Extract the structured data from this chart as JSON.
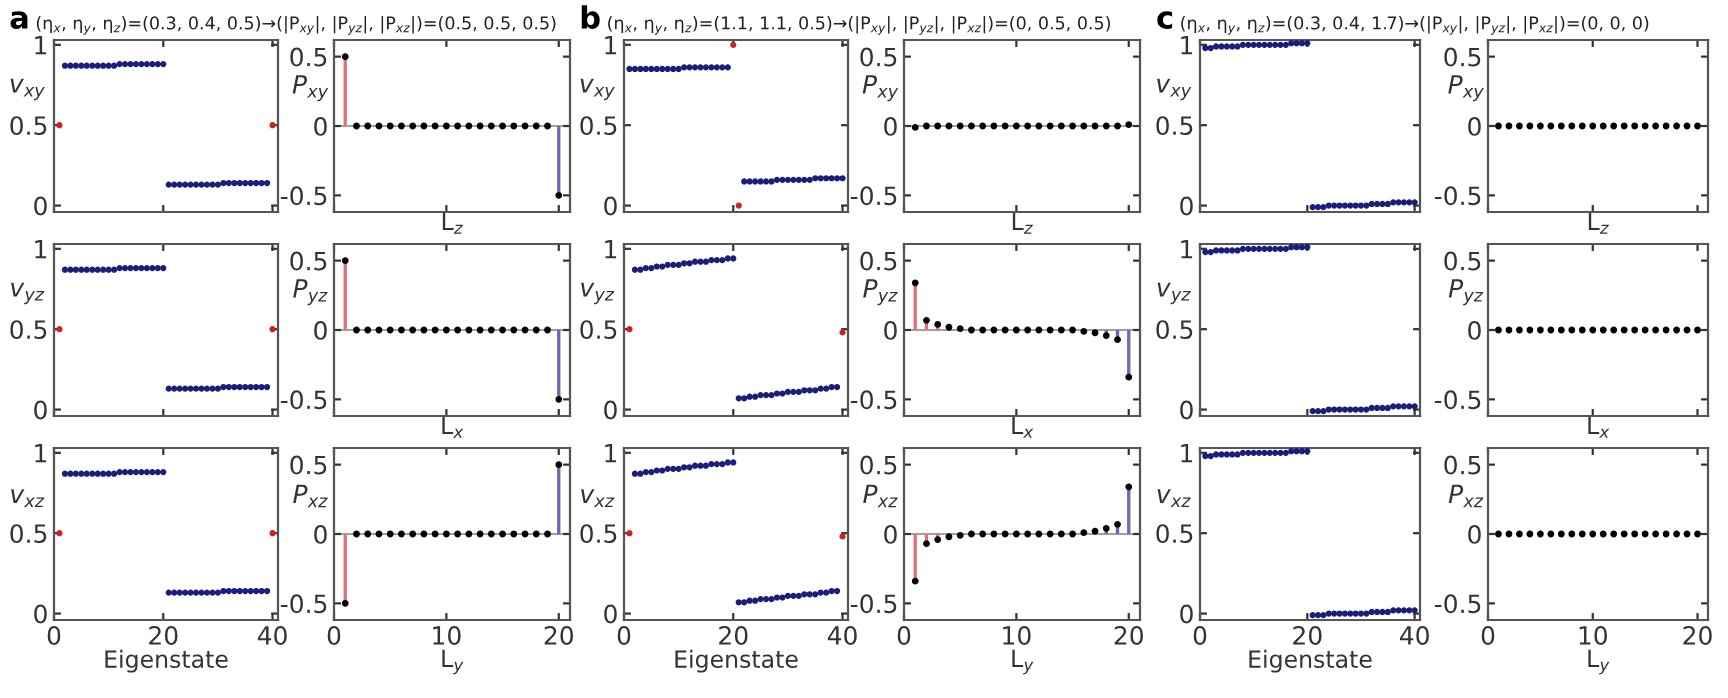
{
  "chart_data": [
    {
      "type": "scatter",
      "title": "a",
      "subtitle": "(η$_{x}$, η$_{y}$, η$_{z}$)=(0.3, 0.4, 0.5)→(|P$_{xy}$|, |P$_{yz}$|, |P$_{xz}$|)=(0.5, 0.5, 0.5)",
      "ylabel": "v$_{xy}$",
      "marker": "circle",
      "xlim": [
        0,
        41
      ],
      "xticks": [
        0,
        20,
        40
      ],
      "ylim": [
        -0.04,
        1.03
      ],
      "yticks": [
        0,
        0.5,
        1
      ],
      "tick_labels": "y",
      "series": [
        {
          "color": "#1c1c7c",
          "x": [
            2,
            3,
            4,
            5,
            6,
            7,
            8,
            9,
            10,
            11,
            12,
            13,
            14,
            15,
            16,
            17,
            18,
            19,
            20,
            21,
            22,
            23,
            24,
            25,
            26,
            27,
            28,
            29,
            30,
            31,
            32,
            33,
            34,
            35,
            36,
            37,
            38,
            39
          ],
          "values": [
            0.87,
            0.87,
            0.87,
            0.87,
            0.87,
            0.87,
            0.87,
            0.87,
            0.87,
            0.87,
            0.88,
            0.88,
            0.88,
            0.88,
            0.88,
            0.88,
            0.88,
            0.88,
            0.88,
            0.13,
            0.13,
            0.13,
            0.13,
            0.13,
            0.13,
            0.13,
            0.13,
            0.13,
            0.13,
            0.14,
            0.14,
            0.14,
            0.14,
            0.14,
            0.14,
            0.14,
            0.14,
            0.14
          ]
        },
        {
          "color": "#d02020",
          "x": [
            1,
            40
          ],
          "values": [
            0.5,
            0.5
          ]
        }
      ]
    },
    {
      "type": "lollipop",
      "ylabel": "P$_{xy}$",
      "xlabel": "L$_{z}$",
      "marker": "circle",
      "xlim": [
        0,
        21
      ],
      "xticks": [
        0,
        10,
        20
      ],
      "ylim": [
        -0.62,
        0.62
      ],
      "yticks": [
        -0.5,
        0,
        0.5
      ],
      "tick_labels": "y",
      "ref_lines": [
        {
          "axis": "y",
          "value": 0,
          "color": "#a0a0a0"
        }
      ],
      "series": [
        {
          "color": "#e0707a",
          "colors": [
            "#000000",
            "#000000",
            "#000000",
            "#000000",
            "#000000",
            "#000000",
            "#000000",
            "#000000",
            "#000000",
            "#000000"
          ],
          "x": [
            1,
            2,
            3,
            4,
            5,
            6,
            7,
            8,
            9,
            10
          ],
          "values": [
            0.5,
            0,
            0,
            0,
            0,
            0,
            0,
            0,
            0,
            0
          ]
        },
        {
          "color": "#6a6ab0",
          "colors": [
            "#000000",
            "#000000",
            "#000000",
            "#000000",
            "#000000",
            "#000000",
            "#000000",
            "#000000",
            "#000000",
            "#000000"
          ],
          "x": [
            11,
            12,
            13,
            14,
            15,
            16,
            17,
            18,
            19,
            20
          ],
          "values": [
            0,
            0,
            0,
            0,
            0,
            0,
            0,
            0,
            0,
            -0.5
          ]
        }
      ]
    },
    {
      "type": "scatter",
      "ylabel": "v$_{yz}$",
      "marker": "circle",
      "xlim": [
        0,
        41
      ],
      "xticks": [
        0,
        20,
        40
      ],
      "ylim": [
        -0.04,
        1.03
      ],
      "yticks": [
        0,
        0.5,
        1
      ],
      "tick_labels": "y",
      "series": [
        {
          "color": "#1c1c7c",
          "x": [
            2,
            3,
            4,
            5,
            6,
            7,
            8,
            9,
            10,
            11,
            12,
            13,
            14,
            15,
            16,
            17,
            18,
            19,
            20,
            21,
            22,
            23,
            24,
            25,
            26,
            27,
            28,
            29,
            30,
            31,
            32,
            33,
            34,
            35,
            36,
            37,
            38,
            39
          ],
          "values": [
            0.87,
            0.87,
            0.87,
            0.87,
            0.87,
            0.87,
            0.87,
            0.87,
            0.87,
            0.87,
            0.88,
            0.88,
            0.88,
            0.88,
            0.88,
            0.88,
            0.88,
            0.88,
            0.88,
            0.13,
            0.13,
            0.13,
            0.13,
            0.13,
            0.13,
            0.13,
            0.13,
            0.13,
            0.13,
            0.14,
            0.14,
            0.14,
            0.14,
            0.14,
            0.14,
            0.14,
            0.14,
            0.14
          ]
        },
        {
          "color": "#d02020",
          "x": [
            1,
            40
          ],
          "values": [
            0.5,
            0.5
          ]
        }
      ]
    },
    {
      "type": "lollipop",
      "ylabel": "P$_{yz}$",
      "xlabel": "L$_{x}$",
      "marker": "circle",
      "xlim": [
        0,
        21
      ],
      "xticks": [
        0,
        10,
        20
      ],
      "ylim": [
        -0.62,
        0.62
      ],
      "yticks": [
        -0.5,
        0,
        0.5
      ],
      "tick_labels": "y",
      "ref_lines": [
        {
          "axis": "y",
          "value": 0,
          "color": "#a0a0a0"
        }
      ],
      "series": [
        {
          "color": "#e0707a",
          "colors": [
            "#000000",
            "#000000",
            "#000000",
            "#000000",
            "#000000",
            "#000000",
            "#000000",
            "#000000",
            "#000000",
            "#000000"
          ],
          "x": [
            1,
            2,
            3,
            4,
            5,
            6,
            7,
            8,
            9,
            10
          ],
          "values": [
            0.5,
            0,
            0,
            0,
            0,
            0,
            0,
            0,
            0,
            0
          ]
        },
        {
          "color": "#6a6ab0",
          "colors": [
            "#000000",
            "#000000",
            "#000000",
            "#000000",
            "#000000",
            "#000000",
            "#000000",
            "#000000",
            "#000000",
            "#000000"
          ],
          "x": [
            11,
            12,
            13,
            14,
            15,
            16,
            17,
            18,
            19,
            20
          ],
          "values": [
            0,
            0,
            0,
            0,
            0,
            0,
            0,
            0,
            0,
            -0.5
          ]
        }
      ]
    },
    {
      "type": "scatter",
      "ylabel": "v$_{xz}$",
      "xlabel": "Eigenstate",
      "marker": "circle",
      "xlim": [
        0,
        41
      ],
      "xticks": [
        0,
        20,
        40
      ],
      "ylim": [
        -0.04,
        1.03
      ],
      "yticks": [
        0,
        0.5,
        1
      ],
      "series": [
        {
          "color": "#1c1c7c",
          "x": [
            2,
            3,
            4,
            5,
            6,
            7,
            8,
            9,
            10,
            11,
            12,
            13,
            14,
            15,
            16,
            17,
            18,
            19,
            20,
            21,
            22,
            23,
            24,
            25,
            26,
            27,
            28,
            29,
            30,
            31,
            32,
            33,
            34,
            35,
            36,
            37,
            38,
            39
          ],
          "values": [
            0.87,
            0.87,
            0.87,
            0.87,
            0.87,
            0.87,
            0.87,
            0.87,
            0.87,
            0.87,
            0.88,
            0.88,
            0.88,
            0.88,
            0.88,
            0.88,
            0.88,
            0.88,
            0.88,
            0.13,
            0.13,
            0.13,
            0.13,
            0.13,
            0.13,
            0.13,
            0.13,
            0.13,
            0.13,
            0.14,
            0.14,
            0.14,
            0.14,
            0.14,
            0.14,
            0.14,
            0.14,
            0.14
          ]
        },
        {
          "color": "#d02020",
          "x": [
            1,
            40
          ],
          "values": [
            0.5,
            0.5
          ]
        }
      ]
    },
    {
      "type": "lollipop",
      "ylabel": "P$_{xz}$",
      "xlabel": "L$_{y}$",
      "marker": "circle",
      "xlim": [
        0,
        21
      ],
      "xticks": [
        0,
        10,
        20
      ],
      "ylim": [
        -0.62,
        0.62
      ],
      "yticks": [
        -0.5,
        0,
        0.5
      ],
      "ref_lines": [
        {
          "axis": "y",
          "value": 0,
          "color": "#a0a0a0"
        }
      ],
      "series": [
        {
          "color": "#e0707a",
          "colors": [
            "#000000",
            "#000000",
            "#000000",
            "#000000",
            "#000000",
            "#000000",
            "#000000",
            "#000000",
            "#000000",
            "#000000"
          ],
          "x": [
            1,
            2,
            3,
            4,
            5,
            6,
            7,
            8,
            9,
            10
          ],
          "values": [
            -0.5,
            0,
            0,
            0,
            0,
            0,
            0,
            0,
            0,
            0
          ]
        },
        {
          "color": "#6a6ab0",
          "colors": [
            "#000000",
            "#000000",
            "#000000",
            "#000000",
            "#000000",
            "#000000",
            "#000000",
            "#000000",
            "#000000",
            "#000000"
          ],
          "x": [
            11,
            12,
            13,
            14,
            15,
            16,
            17,
            18,
            19,
            20
          ],
          "values": [
            0,
            0,
            0,
            0,
            0,
            0,
            0,
            0,
            0,
            0.5
          ]
        }
      ]
    },
    {
      "type": "scatter",
      "title": "b",
      "subtitle": "(η$_{x}$, η$_{y}$, η$_{z}$)=(1.1, 1.1, 0.5)→(|P$_{xy}$|, |P$_{yz}$|, |P$_{xz}$|)=(0, 0.5, 0.5)",
      "ylabel": "v$_{xy}$",
      "marker": "circle",
      "xlim": [
        0,
        41
      ],
      "xticks": [
        0,
        20,
        40
      ],
      "ylim": [
        -0.04,
        1.03
      ],
      "yticks": [
        0,
        0.5,
        1
      ],
      "tick_labels": "y",
      "series": [
        {
          "color": "#1c1c7c",
          "x": [
            1,
            2,
            3,
            4,
            5,
            6,
            7,
            8,
            9,
            10,
            11,
            12,
            13,
            14,
            15,
            16,
            17,
            18,
            19,
            22,
            23,
            24,
            25,
            26,
            27,
            28,
            29,
            30,
            31,
            32,
            33,
            34,
            35,
            36,
            37,
            38,
            39,
            40
          ],
          "values": [
            0.85,
            0.85,
            0.85,
            0.85,
            0.85,
            0.85,
            0.85,
            0.85,
            0.85,
            0.85,
            0.86,
            0.86,
            0.86,
            0.86,
            0.86,
            0.86,
            0.86,
            0.86,
            0.86,
            0.15,
            0.15,
            0.15,
            0.15,
            0.15,
            0.15,
            0.16,
            0.16,
            0.16,
            0.16,
            0.16,
            0.16,
            0.16,
            0.17,
            0.17,
            0.17,
            0.17,
            0.17,
            0.17
          ]
        },
        {
          "color": "#d02020",
          "x": [
            20,
            21
          ],
          "values": [
            1.0,
            0.0
          ]
        }
      ]
    },
    {
      "type": "lollipop",
      "ylabel": "P$_{xy}$",
      "xlabel": "L$_{z}$",
      "marker": "circle",
      "xlim": [
        0,
        21
      ],
      "xticks": [
        0,
        10,
        20
      ],
      "ylim": [
        -0.62,
        0.62
      ],
      "yticks": [
        -0.5,
        0,
        0.5
      ],
      "tick_labels": "y",
      "ref_lines": [
        {
          "axis": "y",
          "value": 0,
          "color": "#a0a0a0"
        }
      ],
      "series": [
        {
          "color": "#e0707a",
          "colors": [
            "#000000",
            "#000000",
            "#000000",
            "#000000",
            "#000000",
            "#000000",
            "#000000",
            "#000000",
            "#000000",
            "#000000"
          ],
          "x": [
            1,
            2,
            3,
            4,
            5,
            6,
            7,
            8,
            9,
            10
          ],
          "values": [
            -0.01,
            0,
            0,
            0,
            0,
            0,
            0,
            0,
            0,
            0
          ]
        },
        {
          "color": "#6a6ab0",
          "colors": [
            "#000000",
            "#000000",
            "#000000",
            "#000000",
            "#000000",
            "#000000",
            "#000000",
            "#000000",
            "#000000",
            "#000000"
          ],
          "x": [
            11,
            12,
            13,
            14,
            15,
            16,
            17,
            18,
            19,
            20
          ],
          "values": [
            0,
            0,
            0,
            0,
            0,
            0,
            0,
            0,
            0,
            0.01
          ]
        }
      ]
    },
    {
      "type": "scatter",
      "ylabel": "v$_{yz}$",
      "marker": "circle",
      "xlim": [
        0,
        41
      ],
      "xticks": [
        0,
        20,
        40
      ],
      "ylim": [
        -0.04,
        1.03
      ],
      "yticks": [
        0,
        0.5,
        1
      ],
      "tick_labels": "y",
      "series": [
        {
          "color": "#1c1c7c",
          "x": [
            2,
            3,
            4,
            5,
            6,
            7,
            8,
            9,
            10,
            11,
            12,
            13,
            14,
            15,
            16,
            17,
            18,
            19,
            20,
            21,
            22,
            23,
            24,
            25,
            26,
            27,
            28,
            29,
            30,
            31,
            32,
            33,
            34,
            35,
            36,
            37,
            38,
            39
          ],
          "values": [
            0.87,
            0.87,
            0.88,
            0.88,
            0.89,
            0.89,
            0.9,
            0.9,
            0.9,
            0.91,
            0.91,
            0.92,
            0.92,
            0.92,
            0.93,
            0.93,
            0.93,
            0.94,
            0.94,
            0.07,
            0.07,
            0.08,
            0.08,
            0.09,
            0.09,
            0.09,
            0.1,
            0.1,
            0.11,
            0.11,
            0.11,
            0.12,
            0.12,
            0.12,
            0.13,
            0.13,
            0.14,
            0.14
          ]
        },
        {
          "color": "#d02020",
          "x": [
            1,
            40
          ],
          "values": [
            0.5,
            0.48
          ]
        }
      ]
    },
    {
      "type": "lollipop",
      "ylabel": "P$_{yz}$",
      "xlabel": "L$_{x}$",
      "marker": "circle",
      "xlim": [
        0,
        21
      ],
      "xticks": [
        0,
        10,
        20
      ],
      "ylim": [
        -0.62,
        0.62
      ],
      "yticks": [
        -0.5,
        0,
        0.5
      ],
      "tick_labels": "y",
      "ref_lines": [
        {
          "axis": "y",
          "value": 0,
          "color": "#a0a0a0"
        }
      ],
      "series": [
        {
          "color": "#e0707a",
          "colors": [
            "#000000",
            "#000000",
            "#000000",
            "#000000",
            "#000000",
            "#000000",
            "#000000",
            "#000000",
            "#000000",
            "#000000"
          ],
          "x": [
            1,
            2,
            3,
            4,
            5,
            6,
            7,
            8,
            9,
            10
          ],
          "values": [
            0.34,
            0.07,
            0.04,
            0.02,
            0.01,
            0,
            0,
            0,
            0,
            0
          ]
        },
        {
          "color": "#6a6ab0",
          "colors": [
            "#000000",
            "#000000",
            "#000000",
            "#000000",
            "#000000",
            "#000000",
            "#000000",
            "#000000",
            "#000000",
            "#000000"
          ],
          "x": [
            11,
            12,
            13,
            14,
            15,
            16,
            17,
            18,
            19,
            20
          ],
          "values": [
            0,
            0,
            0,
            0,
            0,
            -0.01,
            -0.02,
            -0.04,
            -0.07,
            -0.34
          ]
        }
      ]
    },
    {
      "type": "scatter",
      "ylabel": "v$_{xz}$",
      "xlabel": "Eigenstate",
      "marker": "circle",
      "xlim": [
        0,
        41
      ],
      "xticks": [
        0,
        20,
        40
      ],
      "ylim": [
        -0.04,
        1.03
      ],
      "yticks": [
        0,
        0.5,
        1
      ],
      "series": [
        {
          "color": "#1c1c7c",
          "x": [
            2,
            3,
            4,
            5,
            6,
            7,
            8,
            9,
            10,
            11,
            12,
            13,
            14,
            15,
            16,
            17,
            18,
            19,
            20,
            21,
            22,
            23,
            24,
            25,
            26,
            27,
            28,
            29,
            30,
            31,
            32,
            33,
            34,
            35,
            36,
            37,
            38,
            39
          ],
          "values": [
            0.87,
            0.87,
            0.88,
            0.88,
            0.89,
            0.89,
            0.9,
            0.9,
            0.9,
            0.91,
            0.91,
            0.92,
            0.92,
            0.92,
            0.93,
            0.93,
            0.93,
            0.94,
            0.94,
            0.07,
            0.07,
            0.08,
            0.08,
            0.09,
            0.09,
            0.09,
            0.1,
            0.1,
            0.11,
            0.11,
            0.11,
            0.12,
            0.12,
            0.12,
            0.13,
            0.13,
            0.14,
            0.14
          ]
        },
        {
          "color": "#d02020",
          "x": [
            1,
            40
          ],
          "values": [
            0.5,
            0.48
          ]
        }
      ]
    },
    {
      "type": "lollipop",
      "ylabel": "P$_{xz}$",
      "xlabel": "L$_{y}$",
      "marker": "circle",
      "xlim": [
        0,
        21
      ],
      "xticks": [
        0,
        10,
        20
      ],
      "ylim": [
        -0.62,
        0.62
      ],
      "yticks": [
        -0.5,
        0,
        0.5
      ],
      "ref_lines": [
        {
          "axis": "y",
          "value": 0,
          "color": "#a0a0a0"
        }
      ],
      "series": [
        {
          "color": "#e0707a",
          "colors": [
            "#000000",
            "#000000",
            "#000000",
            "#000000",
            "#000000",
            "#000000",
            "#000000",
            "#000000",
            "#000000",
            "#000000"
          ],
          "x": [
            1,
            2,
            3,
            4,
            5,
            6,
            7,
            8,
            9,
            10
          ],
          "values": [
            -0.34,
            -0.07,
            -0.04,
            -0.02,
            -0.01,
            0,
            0,
            0,
            0,
            0
          ]
        },
        {
          "color": "#6a6ab0",
          "colors": [
            "#000000",
            "#000000",
            "#000000",
            "#000000",
            "#000000",
            "#000000",
            "#000000",
            "#000000",
            "#000000",
            "#000000"
          ],
          "x": [
            11,
            12,
            13,
            14,
            15,
            16,
            17,
            18,
            19,
            20
          ],
          "values": [
            0,
            0,
            0,
            0,
            0,
            0.01,
            0.02,
            0.04,
            0.07,
            0.34
          ]
        }
      ]
    },
    {
      "type": "scatter",
      "title": "c",
      "subtitle": "(η$_{x}$, η$_{y}$, η$_{z}$)=(0.3, 0.4, 1.7)→(|P$_{xy}$|, |P$_{yz}$|, |P$_{xz}$|)=(0, 0, 0)",
      "ylabel": "v$_{xy}$",
      "marker": "circle",
      "xlim": [
        0,
        41
      ],
      "xticks": [
        0,
        20,
        40
      ],
      "ylim": [
        -0.04,
        1.03
      ],
      "yticks": [
        0,
        0.5,
        1
      ],
      "tick_labels": "y",
      "series": [
        {
          "color": "#1c1c7c",
          "x": [
            1,
            2,
            3,
            4,
            5,
            6,
            7,
            8,
            9,
            10,
            11,
            12,
            13,
            14,
            15,
            16,
            17,
            18,
            19,
            20,
            21,
            22,
            23,
            24,
            25,
            26,
            27,
            28,
            29,
            30,
            31,
            32,
            33,
            34,
            35,
            36,
            37,
            38,
            39,
            40
          ],
          "values": [
            0.98,
            0.98,
            0.99,
            0.99,
            0.99,
            0.99,
            0.99,
            1.0,
            1.0,
            1.0,
            1.0,
            1.0,
            1.0,
            1.0,
            1.0,
            1.0,
            1.01,
            1.01,
            1.01,
            1.01,
            -0.01,
            -0.01,
            -0.01,
            0,
            0,
            0,
            0,
            0,
            0,
            0,
            0,
            0.01,
            0.01,
            0.01,
            0.01,
            0.02,
            0.02,
            0.02,
            0.02,
            0.02
          ]
        }
      ]
    },
    {
      "type": "lollipop",
      "ylabel": "P$_{xy}$",
      "xlabel": "L$_{z}$",
      "marker": "circle",
      "xlim": [
        0,
        21
      ],
      "xticks": [
        0,
        10,
        20
      ],
      "ylim": [
        -0.62,
        0.62
      ],
      "yticks": [
        -0.5,
        0,
        0.5
      ],
      "tick_labels": "y",
      "series": [
        {
          "color": "#000000",
          "x": [
            1,
            2,
            3,
            4,
            5,
            6,
            7,
            8,
            9,
            10,
            11,
            12,
            13,
            14,
            15,
            16,
            17,
            18,
            19,
            20
          ],
          "values": [
            0,
            0,
            0,
            0,
            0,
            0,
            0,
            0,
            0,
            0,
            0,
            0,
            0,
            0,
            0,
            0,
            0,
            0,
            0,
            0
          ]
        }
      ]
    },
    {
      "type": "scatter",
      "ylabel": "v$_{yz}$",
      "marker": "circle",
      "xlim": [
        0,
        41
      ],
      "xticks": [
        0,
        20,
        40
      ],
      "ylim": [
        -0.04,
        1.03
      ],
      "yticks": [
        0,
        0.5,
        1
      ],
      "tick_labels": "y",
      "series": [
        {
          "color": "#1c1c7c",
          "x": [
            1,
            2,
            3,
            4,
            5,
            6,
            7,
            8,
            9,
            10,
            11,
            12,
            13,
            14,
            15,
            16,
            17,
            18,
            19,
            20,
            21,
            22,
            23,
            24,
            25,
            26,
            27,
            28,
            29,
            30,
            31,
            32,
            33,
            34,
            35,
            36,
            37,
            38,
            39,
            40
          ],
          "values": [
            0.98,
            0.98,
            0.99,
            0.99,
            0.99,
            0.99,
            0.99,
            1.0,
            1.0,
            1.0,
            1.0,
            1.0,
            1.0,
            1.0,
            1.0,
            1.0,
            1.01,
            1.01,
            1.01,
            1.01,
            -0.01,
            -0.01,
            -0.01,
            0,
            0,
            0,
            0,
            0,
            0,
            0,
            0,
            0.01,
            0.01,
            0.01,
            0.01,
            0.02,
            0.02,
            0.02,
            0.02,
            0.02
          ]
        }
      ]
    },
    {
      "type": "lollipop",
      "ylabel": "P$_{yz}$",
      "xlabel": "L$_{x}$",
      "marker": "circle",
      "xlim": [
        0,
        21
      ],
      "xticks": [
        0,
        10,
        20
      ],
      "ylim": [
        -0.62,
        0.62
      ],
      "yticks": [
        -0.5,
        0,
        0.5
      ],
      "tick_labels": "y",
      "series": [
        {
          "color": "#000000",
          "x": [
            1,
            2,
            3,
            4,
            5,
            6,
            7,
            8,
            9,
            10,
            11,
            12,
            13,
            14,
            15,
            16,
            17,
            18,
            19,
            20
          ],
          "values": [
            0,
            0,
            0,
            0,
            0,
            0,
            0,
            0,
            0,
            0,
            0,
            0,
            0,
            0,
            0,
            0,
            0,
            0,
            0,
            0
          ]
        }
      ]
    },
    {
      "type": "scatter",
      "ylabel": "v$_{xz}$",
      "xlabel": "Eigenstate",
      "marker": "circle",
      "xlim": [
        0,
        41
      ],
      "xticks": [
        0,
        20,
        40
      ],
      "ylim": [
        -0.04,
        1.03
      ],
      "yticks": [
        0,
        0.5,
        1
      ],
      "series": [
        {
          "color": "#1c1c7c",
          "x": [
            1,
            2,
            3,
            4,
            5,
            6,
            7,
            8,
            9,
            10,
            11,
            12,
            13,
            14,
            15,
            16,
            17,
            18,
            19,
            20,
            21,
            22,
            23,
            24,
            25,
            26,
            27,
            28,
            29,
            30,
            31,
            32,
            33,
            34,
            35,
            36,
            37,
            38,
            39,
            40
          ],
          "values": [
            0.98,
            0.98,
            0.99,
            0.99,
            0.99,
            0.99,
            0.99,
            1.0,
            1.0,
            1.0,
            1.0,
            1.0,
            1.0,
            1.0,
            1.0,
            1.0,
            1.01,
            1.01,
            1.01,
            1.01,
            -0.01,
            -0.01,
            -0.01,
            0,
            0,
            0,
            0,
            0,
            0,
            0,
            0,
            0.01,
            0.01,
            0.01,
            0.01,
            0.02,
            0.02,
            0.02,
            0.02,
            0.02
          ]
        }
      ]
    },
    {
      "type": "lollipop",
      "ylabel": "P$_{xz}$",
      "xlabel": "L$_{y}$",
      "marker": "circle",
      "xlim": [
        0,
        21
      ],
      "xticks": [
        0,
        10,
        20
      ],
      "ylim": [
        -0.62,
        0.62
      ],
      "yticks": [
        -0.5,
        0,
        0.5
      ],
      "series": [
        {
          "color": "#000000",
          "x": [
            1,
            2,
            3,
            4,
            5,
            6,
            7,
            8,
            9,
            10,
            11,
            12,
            13,
            14,
            15,
            16,
            17,
            18,
            19,
            20
          ],
          "values": [
            0,
            0,
            0,
            0,
            0,
            0,
            0,
            0,
            0,
            0,
            0,
            0,
            0,
            0,
            0,
            0,
            0,
            0,
            0,
            0
          ]
        }
      ]
    }
  ]
}
